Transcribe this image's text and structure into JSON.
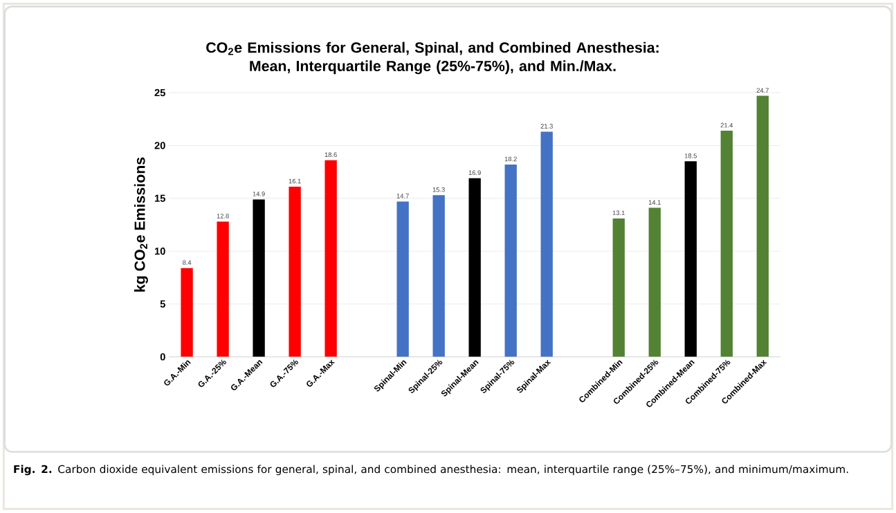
{
  "chart_data": {
    "type": "bar",
    "title": "CO$_{2}$e Emissions for General, Spinal, and Combined Anesthesia: Mean, Interquartile Range (25%-75%), and Min./Max.",
    "ylabel": "kg CO$_{2}$e Emissions",
    "categories": [
      "G.A.-Min",
      "G.A.-25%",
      "G.A.-Mean",
      "G.A.-75%",
      "G.A.-Max",
      null,
      "Spinal-Min",
      "Spinal-25%",
      "Spinal-Mean",
      "Spinal-75%",
      "Spinal-Max",
      null,
      "Combined-Min",
      "Combined-25%",
      "Combined-Mean",
      "Combined-75%",
      "Combined-Max"
    ],
    "values": [
      8.4,
      12.8,
      14.9,
      16.1,
      18.6,
      null,
      14.7,
      15.3,
      16.9,
      18.2,
      21.3,
      null,
      13.1,
      14.1,
      18.5,
      21.4,
      24.7
    ],
    "colors": [
      "#ff0000",
      "#ff0000",
      "#000000",
      "#ff0000",
      "#ff0000",
      null,
      "#4472c4",
      "#4472c4",
      "#000000",
      "#4472c4",
      "#4472c4",
      null,
      "#548235",
      "#548235",
      "#000000",
      "#548235",
      "#548235"
    ],
    "ylim": [
      0,
      25
    ],
    "yticks": [
      0,
      5,
      10,
      15,
      20,
      25
    ],
    "grid": "y",
    "data_labels": true,
    "annotations": [
      "**Fig. 2.** Carbon dioxide equivalent emissions for general, spinal, and combined anesthesia: mean, interquartile range (25%–75%), and minimum/maximum."
    ]
  }
}
